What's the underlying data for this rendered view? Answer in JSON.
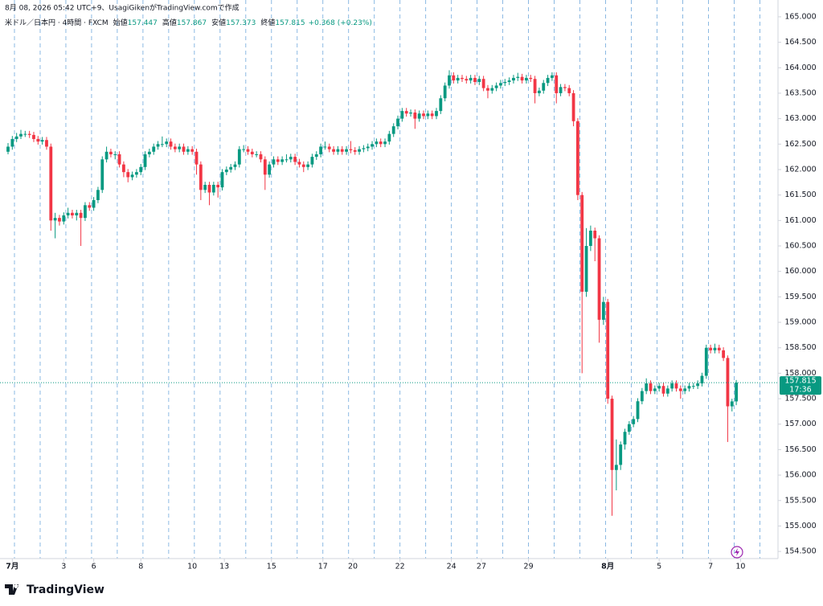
{
  "chart_data": {
    "type": "candlestick",
    "caption": "8月 08, 2026 05:42 UTC+9、UsagiGikenがTradingView.comで作成",
    "symbol": "米ドル／日本円 · 4時間 · FXCM",
    "ohlc_labels": [
      "始値",
      "高値",
      "安値",
      "終値"
    ],
    "change": "+0.368 (+0.23%)",
    "countdown": "17:36",
    "brand": "TradingView",
    "up_color": "#089981",
    "down_color": "#f23645",
    "ylim": [
      154.36,
      165.33
    ],
    "yticks": [
      {
        "value": 154.5,
        "label": "154.500"
      },
      {
        "value": 155,
        "label": "155.000"
      },
      {
        "value": 155.5,
        "label": "155.500"
      },
      {
        "value": 156,
        "label": "156.000"
      },
      {
        "value": 156.5,
        "label": "156.500"
      },
      {
        "value": 157,
        "label": "157.000"
      },
      {
        "value": 157.5,
        "label": "157.500"
      },
      {
        "value": 158,
        "label": "158.000"
      },
      {
        "value": 158.5,
        "label": "158.500"
      },
      {
        "value": 159,
        "label": "159.000"
      },
      {
        "value": 159.5,
        "label": "159.500"
      },
      {
        "value": 160,
        "label": "160.000"
      },
      {
        "value": 160.5,
        "label": "160.500"
      },
      {
        "value": 161,
        "label": "161.000"
      },
      {
        "value": 161.5,
        "label": "161.500"
      },
      {
        "value": 162,
        "label": "162.000"
      },
      {
        "value": 162.5,
        "label": "162.500"
      },
      {
        "value": 163,
        "label": "163.000"
      },
      {
        "value": 163.5,
        "label": "163.500"
      },
      {
        "value": 164,
        "label": "164.000"
      },
      {
        "value": 164.5,
        "label": "164.500"
      },
      {
        "value": 165,
        "label": "165.000"
      }
    ],
    "xticks": [
      {
        "value": 1,
        "label": "7月"
      },
      {
        "value": 13,
        "label": "3"
      },
      {
        "value": 20,
        "label": "6"
      },
      {
        "value": 31,
        "label": "8"
      },
      {
        "value": 43,
        "label": "10"
      },
      {
        "value": 50.5,
        "label": "13"
      },
      {
        "value": 61.5,
        "label": "15"
      },
      {
        "value": 73.5,
        "label": "17"
      },
      {
        "value": 80.5,
        "label": "20"
      },
      {
        "value": 91.5,
        "label": "22"
      },
      {
        "value": 103.5,
        "label": "24"
      },
      {
        "value": 110.5,
        "label": "27"
      },
      {
        "value": 121.5,
        "label": "29"
      },
      {
        "value": 140,
        "label": "8月"
      },
      {
        "value": 152,
        "label": "5"
      },
      {
        "value": 164,
        "label": "7"
      },
      {
        "value": 171,
        "label": "10"
      }
    ],
    "candles": [
      [
        162.35,
        162.52,
        162.3,
        162.45
      ],
      [
        162.45,
        162.66,
        162.39,
        162.6
      ],
      [
        162.6,
        162.72,
        162.54,
        162.65
      ],
      [
        162.65,
        162.78,
        162.6,
        162.7
      ],
      [
        162.7,
        162.76,
        162.64,
        162.7
      ],
      [
        162.7,
        162.76,
        162.62,
        162.68
      ],
      [
        162.68,
        162.74,
        162.54,
        162.6
      ],
      [
        162.6,
        162.66,
        162.49,
        162.55
      ],
      [
        162.55,
        162.64,
        162.49,
        162.58
      ],
      [
        162.58,
        162.64,
        162.39,
        162.45
      ],
      [
        162.45,
        162.51,
        160.8,
        161.0
      ],
      [
        161.0,
        161.15,
        160.65,
        161.05
      ],
      [
        161.05,
        161.11,
        160.9,
        160.98
      ],
      [
        160.98,
        161.16,
        160.92,
        161.1
      ],
      [
        161.1,
        161.25,
        161.04,
        161.15
      ],
      [
        161.15,
        161.21,
        161.04,
        161.1
      ],
      [
        161.1,
        161.21,
        161.0,
        161.15
      ],
      [
        161.15,
        161.21,
        160.5,
        161.05
      ],
      [
        161.05,
        161.36,
        160.99,
        161.3
      ],
      [
        161.3,
        161.36,
        161.19,
        161.25
      ],
      [
        161.25,
        161.46,
        161.19,
        161.4
      ],
      [
        161.4,
        161.66,
        161.34,
        161.6
      ],
      [
        161.6,
        162.26,
        161.54,
        162.2
      ],
      [
        162.2,
        162.45,
        162.14,
        162.35
      ],
      [
        162.35,
        162.41,
        162.24,
        162.3
      ],
      [
        162.3,
        162.36,
        162.2,
        162.3
      ],
      [
        162.3,
        162.36,
        162.04,
        162.1
      ],
      [
        162.1,
        162.16,
        161.85,
        161.95
      ],
      [
        161.95,
        162.01,
        161.75,
        161.85
      ],
      [
        161.85,
        161.96,
        161.79,
        161.9
      ],
      [
        161.9,
        162.01,
        161.84,
        161.95
      ],
      [
        161.95,
        162.11,
        161.89,
        162.05
      ],
      [
        162.05,
        162.36,
        161.99,
        162.3
      ],
      [
        162.3,
        162.41,
        162.24,
        162.35
      ],
      [
        162.35,
        162.51,
        162.29,
        162.45
      ],
      [
        162.45,
        162.56,
        162.39,
        162.5
      ],
      [
        162.5,
        162.65,
        162.44,
        162.5
      ],
      [
        162.5,
        162.61,
        162.44,
        162.55
      ],
      [
        162.55,
        162.61,
        162.39,
        162.45
      ],
      [
        162.45,
        162.51,
        162.34,
        162.4
      ],
      [
        162.4,
        162.51,
        162.34,
        162.45
      ],
      [
        162.45,
        162.51,
        162.29,
        162.35
      ],
      [
        162.35,
        162.46,
        162.29,
        162.4
      ],
      [
        162.4,
        162.46,
        162.29,
        162.35
      ],
      [
        162.35,
        162.41,
        161.9,
        162.1
      ],
      [
        162.1,
        162.16,
        161.4,
        161.6
      ],
      [
        161.6,
        161.76,
        161.54,
        161.7
      ],
      [
        161.7,
        161.76,
        161.3,
        161.55
      ],
      [
        161.55,
        161.76,
        161.49,
        161.7
      ],
      [
        161.7,
        161.76,
        161.45,
        161.65
      ],
      [
        161.65,
        162.01,
        161.59,
        161.95
      ],
      [
        161.95,
        162.06,
        161.89,
        162.0
      ],
      [
        162.0,
        162.11,
        161.94,
        162.05
      ],
      [
        162.05,
        162.16,
        161.99,
        162.1
      ],
      [
        162.1,
        162.46,
        162.04,
        162.4
      ],
      [
        162.4,
        162.48,
        162.34,
        162.4
      ],
      [
        162.4,
        162.46,
        162.29,
        162.35
      ],
      [
        162.35,
        162.41,
        162.24,
        162.3
      ],
      [
        162.3,
        162.36,
        162.24,
        162.3
      ],
      [
        162.3,
        162.36,
        162.14,
        162.2
      ],
      [
        162.2,
        162.26,
        161.6,
        161.9
      ],
      [
        161.9,
        162.16,
        161.84,
        162.1
      ],
      [
        162.1,
        162.26,
        162.04,
        162.2
      ],
      [
        162.2,
        162.26,
        162.09,
        162.15
      ],
      [
        162.15,
        162.26,
        162.09,
        162.2
      ],
      [
        162.2,
        162.3,
        162.14,
        162.2
      ],
      [
        162.2,
        162.31,
        162.14,
        162.25
      ],
      [
        162.25,
        162.31,
        162.09,
        162.15
      ],
      [
        162.15,
        162.21,
        162.04,
        162.1
      ],
      [
        162.1,
        162.16,
        161.95,
        162.05
      ],
      [
        162.05,
        162.16,
        161.99,
        162.1
      ],
      [
        162.1,
        162.31,
        162.04,
        162.25
      ],
      [
        162.25,
        162.36,
        162.19,
        162.3
      ],
      [
        162.3,
        162.51,
        162.24,
        162.45
      ],
      [
        162.45,
        162.55,
        162.39,
        162.45
      ],
      [
        162.45,
        162.51,
        162.34,
        162.4
      ],
      [
        162.4,
        162.46,
        162.29,
        162.35
      ],
      [
        162.35,
        162.46,
        162.29,
        162.4
      ],
      [
        162.4,
        162.46,
        162.29,
        162.35
      ],
      [
        162.35,
        162.46,
        162.29,
        162.4
      ],
      [
        162.4,
        162.56,
        162.32,
        162.38
      ],
      [
        162.38,
        162.44,
        162.29,
        162.35
      ],
      [
        162.35,
        162.46,
        162.29,
        162.4
      ],
      [
        162.4,
        162.48,
        162.34,
        162.42
      ],
      [
        162.42,
        162.51,
        162.36,
        162.45
      ],
      [
        162.45,
        162.56,
        162.39,
        162.5
      ],
      [
        162.5,
        162.61,
        162.44,
        162.55
      ],
      [
        162.55,
        162.61,
        162.44,
        162.5
      ],
      [
        162.5,
        162.61,
        162.44,
        162.55
      ],
      [
        162.55,
        162.76,
        162.49,
        162.7
      ],
      [
        162.7,
        162.91,
        162.64,
        162.85
      ],
      [
        162.85,
        163.06,
        162.79,
        163.0
      ],
      [
        163.0,
        163.21,
        162.94,
        163.15
      ],
      [
        163.15,
        163.21,
        163.04,
        163.1
      ],
      [
        163.1,
        163.18,
        163.04,
        163.12
      ],
      [
        163.12,
        163.18,
        162.8,
        163.0
      ],
      [
        163.0,
        163.16,
        162.94,
        163.1
      ],
      [
        163.1,
        163.16,
        162.99,
        163.05
      ],
      [
        163.05,
        163.16,
        162.99,
        163.1
      ],
      [
        163.1,
        163.16,
        162.99,
        163.05
      ],
      [
        163.05,
        163.21,
        162.99,
        163.15
      ],
      [
        163.15,
        163.46,
        163.09,
        163.4
      ],
      [
        163.4,
        163.71,
        163.34,
        163.65
      ],
      [
        163.65,
        163.95,
        163.59,
        163.85
      ],
      [
        163.85,
        163.91,
        163.69,
        163.75
      ],
      [
        163.75,
        163.86,
        163.69,
        163.8
      ],
      [
        163.8,
        163.86,
        163.72,
        163.78
      ],
      [
        163.78,
        163.84,
        163.69,
        163.75
      ],
      [
        163.75,
        163.86,
        163.69,
        163.8
      ],
      [
        163.8,
        163.86,
        163.66,
        163.72
      ],
      [
        163.72,
        163.84,
        163.66,
        163.78
      ],
      [
        163.78,
        163.84,
        163.54,
        163.6
      ],
      [
        163.6,
        163.66,
        163.4,
        163.55
      ],
      [
        163.55,
        163.66,
        163.49,
        163.6
      ],
      [
        163.6,
        163.71,
        163.54,
        163.65
      ],
      [
        163.65,
        163.76,
        163.59,
        163.7
      ],
      [
        163.7,
        163.78,
        163.64,
        163.72
      ],
      [
        163.72,
        163.81,
        163.66,
        163.75
      ],
      [
        163.75,
        163.86,
        163.69,
        163.8
      ],
      [
        163.8,
        163.9,
        163.74,
        163.82
      ],
      [
        163.82,
        163.88,
        163.69,
        163.75
      ],
      [
        163.75,
        163.86,
        163.69,
        163.8
      ],
      [
        163.8,
        163.86,
        163.72,
        163.78
      ],
      [
        163.78,
        163.84,
        163.3,
        163.5
      ],
      [
        163.5,
        163.61,
        163.44,
        163.55
      ],
      [
        163.55,
        163.76,
        163.49,
        163.7
      ],
      [
        163.7,
        163.86,
        163.64,
        163.8
      ],
      [
        163.8,
        163.91,
        163.74,
        163.85
      ],
      [
        163.85,
        163.91,
        163.3,
        163.5
      ],
      [
        163.5,
        163.68,
        163.44,
        163.62
      ],
      [
        163.62,
        163.68,
        163.54,
        163.6
      ],
      [
        163.6,
        163.66,
        163.44,
        163.5
      ],
      [
        163.5,
        163.56,
        162.85,
        162.95
      ],
      [
        162.95,
        163.01,
        161.4,
        161.5
      ],
      [
        161.5,
        161.56,
        158.0,
        159.6
      ],
      [
        159.6,
        160.85,
        159.5,
        160.5
      ],
      [
        160.5,
        160.9,
        160.4,
        160.8
      ],
      [
        160.8,
        160.86,
        160.2,
        160.65
      ],
      [
        160.65,
        160.71,
        158.6,
        159.05
      ],
      [
        159.05,
        159.5,
        158.95,
        159.4
      ],
      [
        159.4,
        159.46,
        157.4,
        157.5
      ],
      [
        157.5,
        157.56,
        155.2,
        156.1
      ],
      [
        156.1,
        156.7,
        155.7,
        156.2
      ],
      [
        156.2,
        156.66,
        156.1,
        156.6
      ],
      [
        156.6,
        156.91,
        156.5,
        156.85
      ],
      [
        156.85,
        157.06,
        156.79,
        157.0
      ],
      [
        157.0,
        157.16,
        156.94,
        157.1
      ],
      [
        157.1,
        157.51,
        157.04,
        157.45
      ],
      [
        157.45,
        157.71,
        157.39,
        157.65
      ],
      [
        157.65,
        157.9,
        157.59,
        157.8
      ],
      [
        157.8,
        157.86,
        157.59,
        157.65
      ],
      [
        157.65,
        157.76,
        157.59,
        157.7
      ],
      [
        157.7,
        157.81,
        157.64,
        157.75
      ],
      [
        157.75,
        157.81,
        157.54,
        157.6
      ],
      [
        157.6,
        157.76,
        157.54,
        157.7
      ],
      [
        157.7,
        157.86,
        157.64,
        157.8
      ],
      [
        157.8,
        157.86,
        157.64,
        157.7
      ],
      [
        157.7,
        157.76,
        157.5,
        157.65
      ],
      [
        157.65,
        157.76,
        157.59,
        157.7
      ],
      [
        157.7,
        157.81,
        157.64,
        157.75
      ],
      [
        157.75,
        157.81,
        157.69,
        157.75
      ],
      [
        157.75,
        157.86,
        157.69,
        157.8
      ],
      [
        157.8,
        158.01,
        157.74,
        157.95
      ],
      [
        157.95,
        158.56,
        157.89,
        158.5
      ],
      [
        158.5,
        158.56,
        158.39,
        158.45
      ],
      [
        158.45,
        158.58,
        158.39,
        158.5
      ],
      [
        158.5,
        158.56,
        158.39,
        158.45
      ],
      [
        158.45,
        158.51,
        158.24,
        158.3
      ],
      [
        158.3,
        158.35,
        156.65,
        157.35
      ],
      [
        157.35,
        157.5,
        157.25,
        157.447
      ],
      [
        157.447,
        157.867,
        157.373,
        157.815
      ]
    ]
  }
}
